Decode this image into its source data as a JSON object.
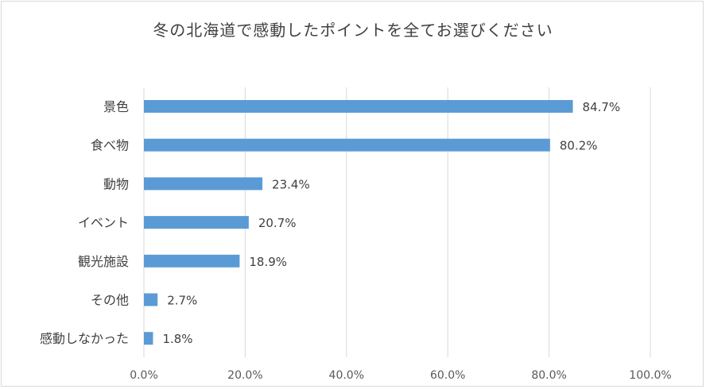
{
  "chart_data": {
    "type": "bar",
    "orientation": "horizontal",
    "title": "冬の北海道で感動したポイントを全てお選びください",
    "categories": [
      "景色",
      "食べ物",
      "動物",
      "イベント",
      "観光施設",
      "その他",
      "感動しなかった"
    ],
    "values": [
      84.7,
      80.2,
      23.4,
      20.7,
      18.9,
      2.7,
      1.8
    ],
    "value_labels": [
      "84.7%",
      "80.2%",
      "23.4%",
      "20.7%",
      "18.9%",
      "2.7%",
      "1.8%"
    ],
    "xlim": [
      0,
      100
    ],
    "x_ticks": [
      "0.0%",
      "20.0%",
      "40.0%",
      "60.0%",
      "80.0%",
      "100.0%"
    ],
    "xlabel": "",
    "ylabel": "",
    "grid": true,
    "bar_color": "#5b9bd5"
  }
}
